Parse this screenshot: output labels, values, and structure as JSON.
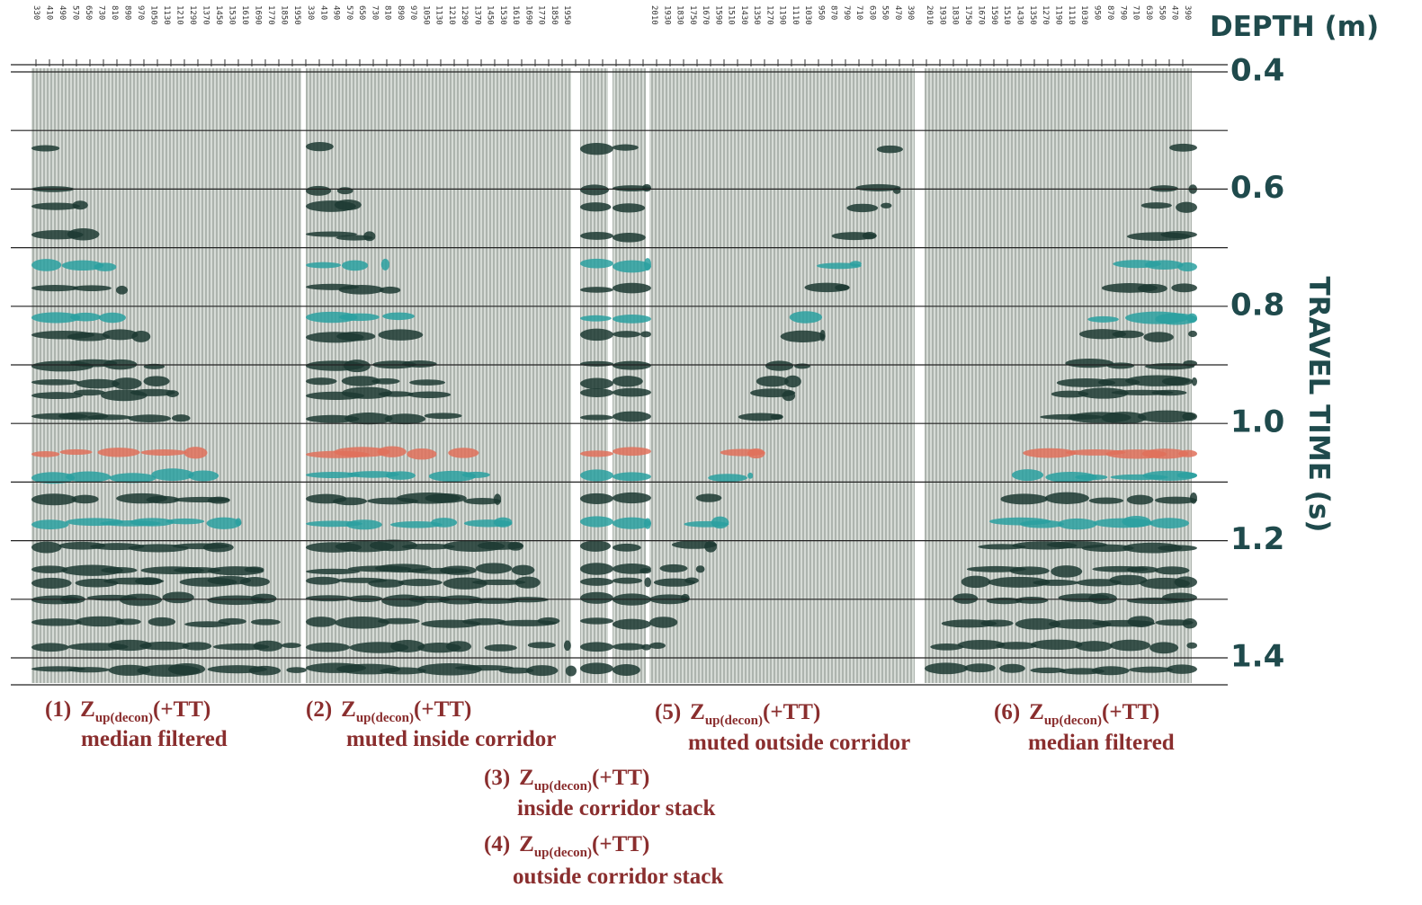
{
  "axis": {
    "depth_title": "DEPTH (m)",
    "time_title": "TRAVEL TIME (s)",
    "tick_labels": [
      "0.4",
      "0.6",
      "0.8",
      "1.0",
      "1.2",
      "1.4"
    ]
  },
  "panels": [
    {
      "depths": [
        "330",
        "410",
        "490",
        "570",
        "650",
        "730",
        "810",
        "890",
        "970",
        "1050",
        "1130",
        "1210",
        "1290",
        "1370",
        "1450",
        "1530",
        "1610",
        "1690",
        "1770",
        "1850",
        "1950"
      ],
      "caption": {
        "num": "(1)",
        "sym": "Z",
        "sub": "up(decon)",
        "suffix": "(+TT)",
        "desc": "median filtered"
      }
    },
    {
      "depths": [
        "330",
        "410",
        "490",
        "570",
        "650",
        "730",
        "810",
        "890",
        "970",
        "1050",
        "1130",
        "1210",
        "1290",
        "1370",
        "1450",
        "1530",
        "1610",
        "1690",
        "1770",
        "1850",
        "1950"
      ],
      "caption": {
        "num": "(2)",
        "sym": "Z",
        "sub": "up(decon)",
        "suffix": "(+TT)",
        "desc": "muted inside corridor"
      }
    },
    {
      "caption": {
        "num": "(3)",
        "sym": "Z",
        "sub": "up(decon)",
        "suffix": "(+TT)",
        "desc": "inside corridor stack"
      }
    },
    {
      "caption": {
        "num": "(4)",
        "sym": "Z",
        "sub": "up(decon)",
        "suffix": "(+TT)",
        "desc": "outside corridor stack"
      }
    },
    {
      "depths": [
        "2010",
        "1930",
        "1830",
        "1750",
        "1670",
        "1590",
        "1510",
        "1430",
        "1350",
        "1270",
        "1190",
        "1110",
        "1030",
        "950",
        "870",
        "790",
        "710",
        "630",
        "550",
        "470",
        "390"
      ],
      "caption": {
        "num": "(5)",
        "sym": "Z",
        "sub": "up(decon)",
        "suffix": "(+TT)",
        "desc": "muted outside corridor"
      }
    },
    {
      "depths": [
        "2010",
        "1930",
        "1830",
        "1750",
        "1670",
        "1590",
        "1510",
        "1430",
        "1350",
        "1270",
        "1190",
        "1110",
        "1030",
        "950",
        "870",
        "790",
        "710",
        "630",
        "550",
        "470",
        "390"
      ],
      "caption": {
        "num": "(6)",
        "sym": "Z",
        "sub": "up(decon)",
        "suffix": "(+TT)",
        "desc": "median filtered"
      }
    }
  ]
}
